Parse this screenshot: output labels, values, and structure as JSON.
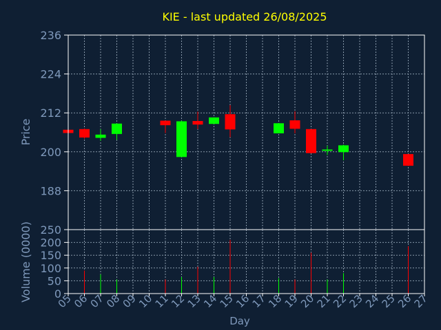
{
  "chart_data": {
    "type": "candlestick",
    "title": "KIE - last updated 26/08/2025",
    "xlabel": "Day",
    "price_panel": {
      "ylabel": "Price",
      "ylim": [
        176,
        236
      ],
      "yticks": [
        236,
        224,
        212,
        200,
        188
      ]
    },
    "volume_panel": {
      "ylabel": "Volume (0000)",
      "ylim": [
        0,
        250
      ],
      "yticks": [
        250,
        200,
        150,
        100,
        50,
        0
      ]
    },
    "x_ticks": [
      "05",
      "06",
      "07",
      "08",
      "09",
      "10",
      "11",
      "12",
      "13",
      "14",
      "15",
      "16",
      "17",
      "18",
      "19",
      "20",
      "21",
      "22",
      "23",
      "24",
      "25",
      "26",
      "27"
    ],
    "grid": true,
    "colors": {
      "background": "#0f1f33",
      "title": "#ffff00",
      "axis_text": "#7f99bb",
      "grid": "#8899aa",
      "up": "#00ff00",
      "down": "#ff0000"
    },
    "candles": [
      {
        "day": "05",
        "open": 206.8,
        "high": 207.0,
        "low": 205.6,
        "close": 205.8,
        "volume": 0
      },
      {
        "day": "06",
        "open": 207.0,
        "high": 207.2,
        "low": 204.0,
        "close": 204.4,
        "volume": 90
      },
      {
        "day": "07",
        "open": 204.3,
        "high": 207.0,
        "low": 203.4,
        "close": 205.3,
        "volume": 75
      },
      {
        "day": "08",
        "open": 205.5,
        "high": 208.8,
        "low": 203.7,
        "close": 208.7,
        "volume": 55
      },
      {
        "day": "11",
        "open": 209.6,
        "high": 209.6,
        "low": 205.8,
        "close": 208.2,
        "volume": 55
      },
      {
        "day": "12",
        "open": 198.4,
        "high": 209.6,
        "low": 198.4,
        "close": 209.4,
        "volume": 65
      },
      {
        "day": "13",
        "open": 209.5,
        "high": 212.4,
        "low": 207.0,
        "close": 208.4,
        "volume": 105
      },
      {
        "day": "14",
        "open": 208.6,
        "high": 210.6,
        "low": 208.6,
        "close": 210.6,
        "volume": 65
      },
      {
        "day": "15",
        "open": 211.6,
        "high": 214.4,
        "low": 204.5,
        "close": 206.9,
        "volume": 210
      },
      {
        "day": "18",
        "open": 205.7,
        "high": 208.9,
        "low": 205.7,
        "close": 208.8,
        "volume": 60
      },
      {
        "day": "19",
        "open": 209.7,
        "high": 212.5,
        "low": 205.7,
        "close": 207.1,
        "volume": 55
      },
      {
        "day": "20",
        "open": 207.0,
        "high": 207.0,
        "low": 199.5,
        "close": 199.6,
        "volume": 160
      },
      {
        "day": "21",
        "open": 200.3,
        "high": 201.9,
        "low": 199.0,
        "close": 200.7,
        "volume": 55
      },
      {
        "day": "22",
        "open": 199.9,
        "high": 202.2,
        "low": 197.4,
        "close": 202.0,
        "volume": 80
      },
      {
        "day": "26",
        "open": 199.3,
        "high": 199.3,
        "low": 195.6,
        "close": 195.7,
        "volume": 185
      }
    ]
  }
}
